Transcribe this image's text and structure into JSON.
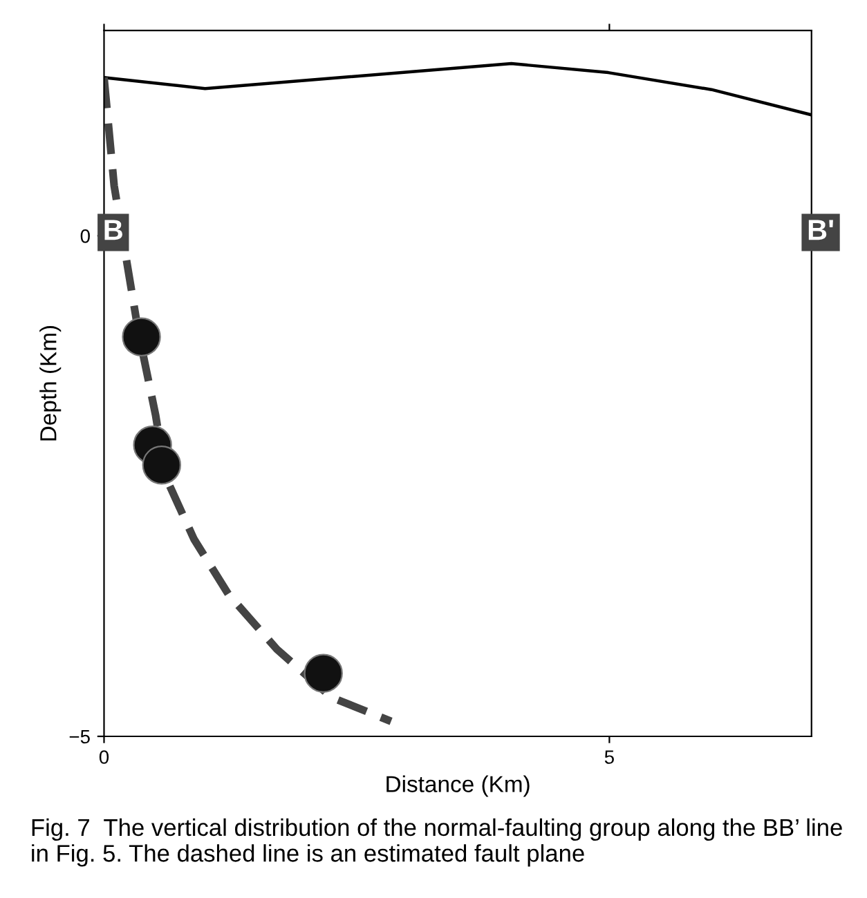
{
  "chart_data": {
    "type": "line",
    "xlabel": "Distance (Km)",
    "ylabel": "Depth (Km)",
    "xlim": [
      0,
      7.0
    ],
    "ylim": [
      -5,
      2.05
    ],
    "xticks": [
      0,
      5
    ],
    "yticks": [
      -5,
      0
    ],
    "grid": false,
    "legend": false,
    "series": [
      {
        "color": "#000000",
        "line_style": "solid",
        "marker": "none",
        "x": [
          0,
          1.0,
          4.03,
          4.99,
          6.01,
          6.99
        ],
        "values": [
          1.58,
          1.47,
          1.72,
          1.63,
          1.46,
          1.21
        ]
      },
      {
        "color": "#444444",
        "line_style": "dashed",
        "marker": "none",
        "x": [
          0,
          0.1,
          0.34,
          0.51,
          0.61,
          0.89,
          1.23,
          1.71,
          2.25,
          2.84
        ],
        "values": [
          1.58,
          0.5,
          -0.96,
          -1.79,
          -2.41,
          -3.03,
          -3.58,
          -4.13,
          -4.61,
          -4.85
        ]
      },
      {
        "type": "scatter",
        "color": "#111111",
        "marker": "circle",
        "x": [
          0.37,
          0.48,
          0.57,
          2.17
        ],
        "values": [
          -1.01,
          -2.09,
          -2.29,
          -4.37
        ]
      }
    ],
    "annotations": [
      "B",
      "B'",
      "Fig. 7  The vertical distribution of the normal-faulting group along the BB’ line in Fig. 5. The dashed line is an estimated fault plane"
    ]
  }
}
